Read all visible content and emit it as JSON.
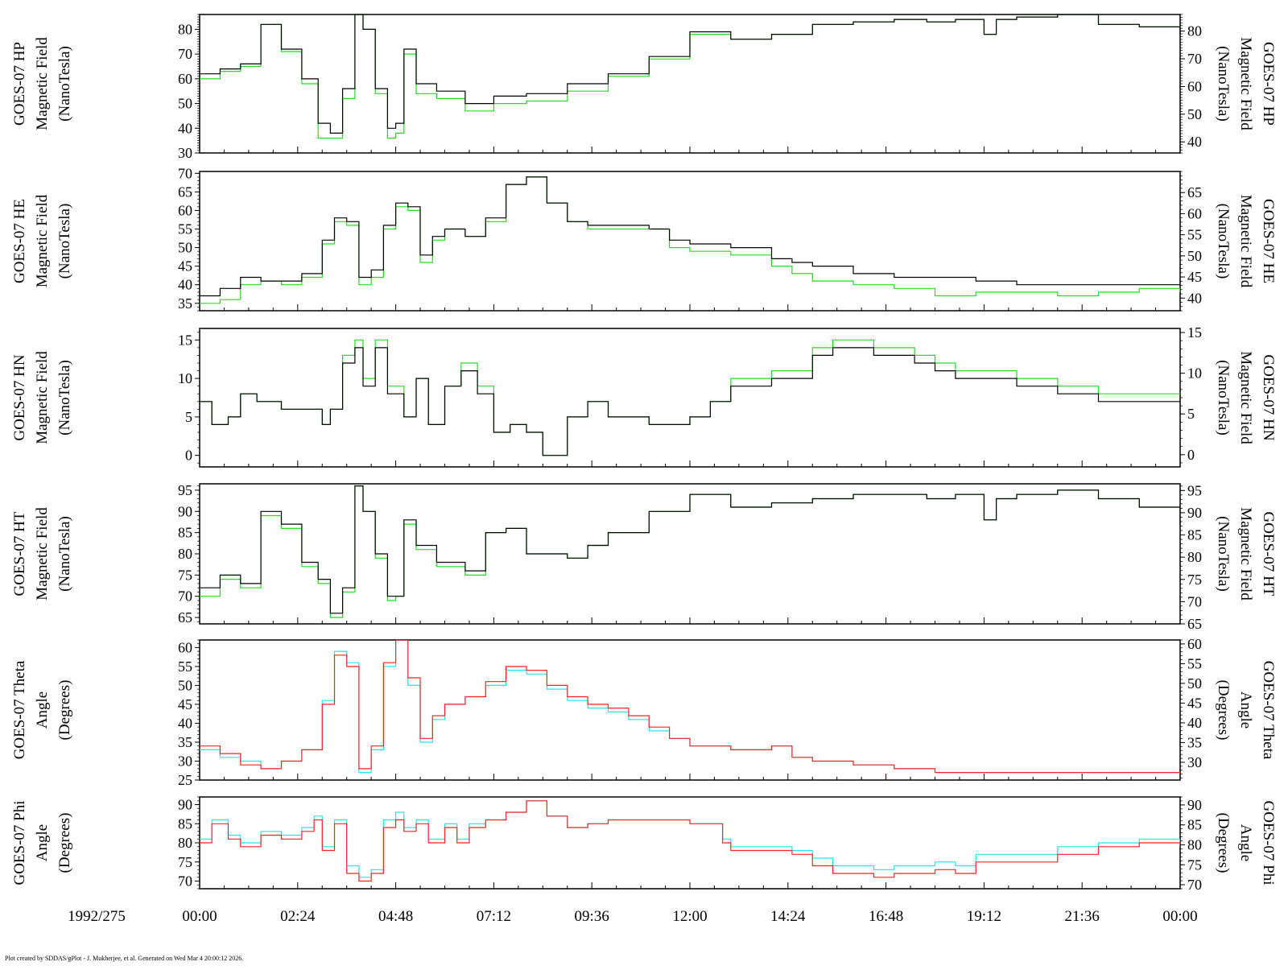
{
  "date_label": "1992/275",
  "x_ticks": [
    "00:00",
    "02:24",
    "04:48",
    "07:12",
    "09:36",
    "12:00",
    "14:24",
    "16:48",
    "19:12",
    "21:36",
    "00:00"
  ],
  "footer": "Plot created by SDDAS/gPlot - J. Mukherjee, et al.  Generated on Wed Mar 4 20:00:12 2026.",
  "colors": {
    "hp_series_1": "#000000",
    "hp_series_2": "#22dd22",
    "angle_series_1": "#ff2222",
    "angle_series_2": "#22e5ee"
  },
  "chart_data": [
    {
      "type": "line",
      "ylabel": [
        "GOES-07 HP",
        "Magnetic Field",
        "(NanoTesla)"
      ],
      "ylim": [
        30,
        86
      ],
      "yticks": [
        30,
        40,
        50,
        60,
        70,
        80
      ],
      "right_ylim": [
        36,
        86
      ],
      "right_yticks": [
        40,
        50,
        60,
        70,
        80
      ],
      "x_hours": [
        0,
        0.5,
        1.0,
        1.5,
        2.0,
        2.5,
        2.9,
        3.2,
        3.5,
        3.8,
        4.0,
        4.3,
        4.6,
        4.8,
        5.0,
        5.3,
        5.8,
        6.5,
        7.2,
        8.0,
        9.0,
        10.0,
        11.0,
        12.0,
        13.0,
        14.0,
        15.0,
        16.0,
        17.0,
        17.8,
        18.5,
        19.2,
        19.5,
        20.0,
        21.0,
        22.0,
        23.0,
        24.0
      ],
      "series": [
        {
          "values": [
            62,
            64,
            66,
            82,
            72,
            60,
            42,
            38,
            56,
            86,
            80,
            56,
            40,
            42,
            72,
            58,
            55,
            50,
            53,
            54,
            58,
            62,
            69,
            79,
            76,
            78,
            82,
            83,
            84,
            83,
            84,
            78,
            84,
            85,
            86,
            82,
            81,
            78
          ]
        },
        {
          "values": [
            60,
            63,
            65,
            82,
            71,
            58,
            36,
            36,
            52,
            86,
            80,
            54,
            36,
            38,
            70,
            54,
            52,
            47,
            50,
            51,
            55,
            61,
            68,
            78,
            76,
            78,
            82,
            83,
            84,
            83,
            84,
            78,
            84,
            85,
            86,
            82,
            81,
            78
          ]
        }
      ]
    },
    {
      "type": "line",
      "ylabel": [
        "GOES-07 HE",
        "Magnetic Field",
        "(NanoTesla)"
      ],
      "ylim": [
        33,
        70.5
      ],
      "yticks": [
        35,
        40,
        45,
        50,
        55,
        60,
        65,
        70
      ],
      "right_ylim": [
        37,
        70
      ],
      "right_yticks": [
        40,
        45,
        50,
        55,
        60,
        65
      ],
      "x_hours": [
        0,
        0.5,
        1.0,
        1.5,
        2.0,
        2.5,
        3.0,
        3.3,
        3.6,
        3.9,
        4.2,
        4.5,
        4.8,
        5.1,
        5.4,
        5.7,
        6.0,
        6.5,
        7.0,
        7.5,
        8.0,
        8.5,
        9.0,
        9.5,
        10.0,
        10.5,
        11.0,
        11.5,
        12.0,
        13.0,
        14.0,
        14.5,
        15.0,
        16.0,
        17.0,
        18.0,
        19.0,
        20.0,
        21.0,
        22.0,
        23.0,
        24.0
      ],
      "series": [
        {
          "values": [
            37,
            39,
            42,
            41,
            41,
            43,
            52,
            58,
            57,
            42,
            44,
            56,
            62,
            61,
            48,
            53,
            55,
            53,
            58,
            67,
            69,
            62,
            57,
            56,
            56,
            56,
            55,
            52,
            51,
            50,
            47,
            46,
            45,
            43,
            42,
            42,
            41,
            40,
            40,
            40,
            40,
            40
          ]
        },
        {
          "values": [
            35,
            36,
            40,
            41,
            40,
            42,
            51,
            57,
            56,
            40,
            42,
            55,
            61,
            60,
            46,
            52,
            55,
            53,
            57,
            67,
            69,
            62,
            57,
            55,
            55,
            55,
            55,
            50,
            49,
            48,
            45,
            43,
            41,
            40,
            39,
            37,
            38,
            38,
            37,
            38,
            39,
            38
          ]
        }
      ]
    },
    {
      "type": "line",
      "ylabel": [
        "GOES-07 HN",
        "Magnetic Field",
        "(NanoTesla)"
      ],
      "ylim": [
        -1.5,
        16.5
      ],
      "yticks": [
        0,
        5,
        10,
        15
      ],
      "right_ylim": [
        -1.5,
        15.5
      ],
      "right_yticks": [
        0,
        5,
        10,
        15
      ],
      "x_hours": [
        0,
        0.3,
        0.7,
        1.0,
        1.4,
        2.0,
        2.5,
        3.0,
        3.2,
        3.5,
        3.8,
        4.0,
        4.3,
        4.6,
        5.0,
        5.3,
        5.6,
        6.0,
        6.4,
        6.8,
        7.2,
        7.6,
        8.0,
        8.4,
        9.0,
        9.5,
        10.0,
        11.0,
        12.0,
        12.5,
        13.0,
        14.0,
        15.0,
        15.5,
        16.0,
        16.5,
        17.0,
        17.5,
        18.0,
        18.5,
        19.0,
        20.0,
        21.0,
        22.0,
        23.0,
        24.0
      ],
      "series": [
        {
          "values": [
            7,
            4,
            5,
            8,
            7,
            6,
            6,
            4,
            6,
            12,
            14,
            9,
            14,
            8,
            5,
            10,
            4,
            9,
            11,
            8,
            3,
            4,
            3,
            0,
            5,
            7,
            5,
            4,
            5,
            7,
            9,
            10,
            13,
            14,
            14,
            13,
            13,
            12,
            11,
            10,
            10,
            9,
            8,
            7,
            7,
            7
          ]
        },
        {
          "values": [
            7,
            4,
            5,
            8,
            7,
            6,
            6,
            4,
            6,
            13,
            15,
            10,
            15,
            9,
            5,
            10,
            4,
            9,
            12,
            9,
            3,
            4,
            3,
            0,
            5,
            7,
            5,
            4,
            5,
            7,
            10,
            11,
            14,
            15,
            15,
            14,
            14,
            13,
            12,
            11,
            11,
            10,
            9,
            8,
            8,
            8
          ]
        }
      ]
    },
    {
      "type": "line",
      "ylabel": [
        "GOES-07 HT",
        "Magnetic Field",
        "(NanoTesla)"
      ],
      "ylim": [
        63.5,
        96.5
      ],
      "yticks": [
        65,
        70,
        75,
        80,
        85,
        90,
        95
      ],
      "right_ylim": [
        65,
        96.5
      ],
      "right_yticks": [
        65,
        70,
        75,
        80,
        85,
        90,
        95
      ],
      "x_hours": [
        0,
        0.5,
        1.0,
        1.5,
        2.0,
        2.5,
        2.9,
        3.2,
        3.5,
        3.8,
        4.0,
        4.3,
        4.6,
        4.8,
        5.0,
        5.3,
        5.8,
        6.5,
        7.0,
        7.5,
        8.0,
        9.0,
        9.5,
        10.0,
        11.0,
        12.0,
        13.0,
        14.0,
        15.0,
        16.0,
        17.0,
        17.8,
        18.5,
        19.2,
        19.5,
        20.0,
        21.0,
        22.0,
        23.0,
        24.0
      ],
      "series": [
        {
          "values": [
            72,
            75,
            73,
            90,
            87,
            78,
            74,
            66,
            72,
            96,
            90,
            80,
            70,
            70,
            88,
            82,
            78,
            76,
            85,
            86,
            80,
            79,
            82,
            85,
            90,
            94,
            91,
            92,
            93,
            94,
            94,
            93,
            94,
            88,
            93,
            94,
            95,
            93,
            91,
            87
          ]
        },
        {
          "values": [
            70,
            74,
            72,
            89,
            86,
            77,
            73,
            65,
            71,
            96,
            90,
            79,
            69,
            70,
            87,
            81,
            77,
            75,
            85,
            86,
            80,
            79,
            82,
            85,
            90,
            94,
            91,
            92,
            93,
            94,
            94,
            93,
            94,
            88,
            93,
            94,
            95,
            93,
            91,
            87
          ]
        }
      ]
    },
    {
      "type": "line",
      "ylabel": [
        "GOES-07 Theta",
        "Angle",
        "(Degrees)"
      ],
      "ylim": [
        25,
        62
      ],
      "yticks": [
        25,
        30,
        35,
        40,
        45,
        50,
        55,
        60
      ],
      "right_ylim": [
        25.5,
        61
      ],
      "right_yticks": [
        30,
        35,
        40,
        45,
        50,
        55,
        60
      ],
      "x_hours": [
        0,
        0.5,
        1.0,
        1.5,
        2.0,
        2.5,
        3.0,
        3.3,
        3.6,
        3.9,
        4.2,
        4.5,
        4.8,
        5.1,
        5.4,
        5.7,
        6.0,
        6.5,
        7.0,
        7.5,
        8.0,
        8.5,
        9.0,
        9.5,
        10.0,
        10.5,
        11.0,
        11.5,
        12.0,
        13.0,
        14.0,
        14.5,
        15.0,
        16.0,
        17.0,
        18.0,
        19.0,
        20.0,
        21.0,
        22.0,
        23.0,
        24.0
      ],
      "series": [
        {
          "values": [
            34,
            32,
            29,
            28,
            30,
            33,
            45,
            58,
            55,
            28,
            34,
            56,
            62,
            52,
            36,
            42,
            45,
            47,
            51,
            55,
            54,
            50,
            47,
            45,
            44,
            42,
            39,
            36,
            34,
            33,
            34,
            31,
            30,
            29,
            28,
            27,
            27,
            27,
            27,
            27,
            27,
            27
          ]
        },
        {
          "values": [
            33,
            31,
            30,
            28,
            30,
            33,
            46,
            59,
            56,
            27,
            33,
            55,
            62,
            50,
            35,
            41,
            45,
            47,
            50,
            54,
            53,
            49,
            46,
            44,
            43,
            41,
            38,
            36,
            34,
            33,
            34,
            31,
            30,
            29,
            28,
            27,
            27,
            27,
            27,
            27,
            27,
            27
          ]
        }
      ]
    },
    {
      "type": "line",
      "ylabel": [
        "GOES-07 Phi",
        "Angle",
        "(Degrees)"
      ],
      "ylim": [
        68,
        92
      ],
      "yticks": [
        70,
        75,
        80,
        85,
        90
      ],
      "right_ylim": [
        69,
        92
      ],
      "right_yticks": [
        70,
        75,
        80,
        85,
        90
      ],
      "x_hours": [
        0,
        0.3,
        0.7,
        1.0,
        1.5,
        2.0,
        2.5,
        2.8,
        3.0,
        3.3,
        3.6,
        3.9,
        4.2,
        4.5,
        4.8,
        5.0,
        5.3,
        5.6,
        6.0,
        6.3,
        6.6,
        7.0,
        7.5,
        8.0,
        8.5,
        9.0,
        9.5,
        10.0,
        11.0,
        12.0,
        12.8,
        13.0,
        14.0,
        14.5,
        15.0,
        15.5,
        16.0,
        16.5,
        17.0,
        17.5,
        18.0,
        18.5,
        19.0,
        19.5,
        20.0,
        21.0,
        22.0,
        23.0,
        24.0
      ],
      "series": [
        {
          "values": [
            80,
            85,
            81,
            79,
            82,
            81,
            83,
            86,
            78,
            85,
            72,
            70,
            72,
            84,
            86,
            83,
            85,
            80,
            84,
            80,
            84,
            86,
            88,
            91,
            87,
            84,
            85,
            86,
            86,
            85,
            80,
            78,
            78,
            77,
            74,
            72,
            72,
            71,
            72,
            72,
            73,
            72,
            75,
            75,
            75,
            77,
            79,
            80,
            79
          ]
        },
        {
          "values": [
            81,
            86,
            82,
            80,
            83,
            82,
            84,
            87,
            79,
            86,
            74,
            71,
            73,
            86,
            88,
            84,
            86,
            81,
            85,
            81,
            85,
            86,
            88,
            91,
            87,
            84,
            85,
            86,
            86,
            85,
            81,
            79,
            79,
            78,
            76,
            74,
            74,
            73,
            74,
            74,
            75,
            74,
            77,
            77,
            77,
            79,
            80,
            81,
            80
          ]
        }
      ]
    }
  ]
}
